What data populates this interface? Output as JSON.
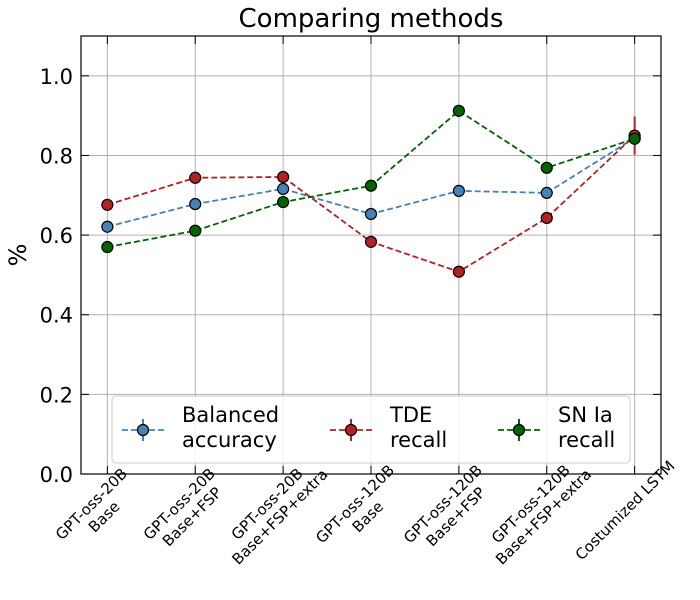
{
  "chart_data": {
    "type": "line",
    "title": "Comparing methods",
    "xlabel": "",
    "ylabel": "%",
    "ylim": [
      0,
      1.1
    ],
    "yticks": [
      "0.0",
      "0.2",
      "0.4",
      "0.6",
      "0.8",
      "1.0"
    ],
    "grid": true,
    "legend_placement": "lower-center",
    "categories": [
      [
        "GPT-oss-20B",
        "Base"
      ],
      [
        "GPT-oss-20B",
        "Base+FSP"
      ],
      [
        "GPT-oss-20B",
        "Base+FSP+extra"
      ],
      [
        "GPT-oss-120B",
        "Base"
      ],
      [
        "GPT-oss-120B",
        "Base+FSP"
      ],
      [
        "GPT-oss-120B",
        "Base+FSP+extra"
      ],
      [
        "Costumized LSTM"
      ]
    ],
    "series": [
      {
        "name": [
          "Balanced",
          "accuracy"
        ],
        "color": "#4682b4",
        "values": [
          0.621,
          0.678,
          0.716,
          0.653,
          0.711,
          0.706,
          0.844
        ],
        "errors": [
          0,
          0,
          0,
          0,
          0,
          0,
          0.01
        ]
      },
      {
        "name": [
          "TDE",
          "recall"
        ],
        "color": "#b22222",
        "values": [
          0.676,
          0.744,
          0.746,
          0.583,
          0.508,
          0.643,
          0.85
        ],
        "errors": [
          0,
          0,
          0,
          0,
          0,
          0,
          0.048
        ]
      },
      {
        "name": [
          "SN Ia",
          "recall"
        ],
        "color": "#006400",
        "values": [
          0.57,
          0.611,
          0.683,
          0.724,
          0.912,
          0.769,
          0.842
        ],
        "errors": [
          0,
          0,
          0,
          0,
          0,
          0,
          0.012
        ]
      }
    ]
  }
}
